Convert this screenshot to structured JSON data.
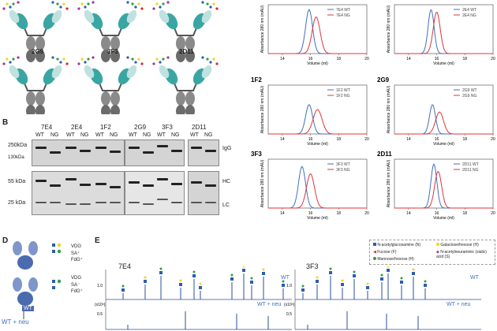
{
  "panels": {
    "B": "B",
    "D": "D",
    "E": "E"
  },
  "antibodies_top": [
    {
      "label": ""
    },
    {
      "label": ""
    },
    {
      "label": ""
    },
    {
      "label": "2G9"
    },
    {
      "label": "3F3"
    },
    {
      "label": "2D11"
    }
  ],
  "gel": {
    "lanes": [
      {
        "clone": "7E4",
        "wt": "WT",
        "ng": "NG"
      },
      {
        "clone": "2E4",
        "wt": "WT",
        "ng": "NG"
      },
      {
        "clone": "1F2",
        "wt": "WT",
        "ng": "NG"
      },
      {
        "clone": "2G9",
        "wt": "WT",
        "ng": "NG"
      },
      {
        "clone": "3F3",
        "wt": "WT",
        "ng": "NG"
      },
      {
        "clone": "2D11",
        "wt": "WT",
        "ng": "NG"
      }
    ],
    "markers_top": [
      "250kDa",
      "130kDa"
    ],
    "markers_bottom": [
      "55 kDa",
      "25 kDa"
    ],
    "row_labels": [
      "IgG",
      "HC",
      "LC"
    ]
  },
  "chromatograms": {
    "ylabel": "Absorbance 280 nm (mAU)",
    "xlabel": "Volume (ml)",
    "xticks": [
      "14",
      "16",
      "18",
      "20"
    ],
    "wt_color": "#3f6fc0",
    "ng_color": "#e0333a",
    "charts": [
      {
        "title": "",
        "legend_wt": "7E4 WT",
        "legend_ng": "7E4 NG"
      },
      {
        "title": "",
        "legend_wt": "2E4 WT",
        "legend_ng": "2E4 NG"
      },
      {
        "title": "1F2",
        "legend_wt": "1F2 WT",
        "legend_ng": "1F2 NG"
      },
      {
        "title": "2G9",
        "legend_wt": "2G9 WT",
        "legend_ng": "2G9 NG"
      },
      {
        "title": "3F3",
        "legend_wt": "3F3 WT",
        "legend_ng": "3F3 NG"
      },
      {
        "title": "2D11",
        "legend_wt": "2D11 WT",
        "legend_ng": "2D11 NG"
      }
    ]
  },
  "chart_data": [
    {
      "type": "line",
      "title": "",
      "xlabel": "Volume (ml)",
      "ylabel": "Absorbance 280 nm (mAU)",
      "xlim": [
        13,
        20
      ],
      "series": [
        {
          "name": "7E4 WT",
          "peak": 15.9,
          "width": 0.35,
          "height": 0.9
        },
        {
          "name": "7E4 NG",
          "peak": 16.4,
          "width": 0.4,
          "height": 0.75
        }
      ]
    },
    {
      "type": "line",
      "title": "",
      "xlabel": "Volume (ml)",
      "ylabel": "Absorbance 280 nm (mAU)",
      "xlim": [
        13,
        20
      ],
      "series": [
        {
          "name": "2E4 WT",
          "peak": 15.6,
          "width": 0.3,
          "height": 0.9
        },
        {
          "name": "2E4 NG",
          "peak": 16.0,
          "width": 0.35,
          "height": 0.85
        }
      ]
    },
    {
      "type": "line",
      "title": "1F2",
      "xlabel": "Volume (ml)",
      "ylabel": "Absorbance 280 nm (mAU)",
      "xlim": [
        13,
        20
      ],
      "series": [
        {
          "name": "1F2 WT",
          "peak": 15.9,
          "width": 0.35,
          "height": 0.6
        },
        {
          "name": "1F2 NG",
          "peak": 16.5,
          "width": 0.45,
          "height": 0.5
        }
      ]
    },
    {
      "type": "line",
      "title": "2G9",
      "xlabel": "Volume (ml)",
      "ylabel": "Absorbance 280 nm (mAU)",
      "xlim": [
        13,
        20
      ],
      "series": [
        {
          "name": "2G9 WT",
          "peak": 15.7,
          "width": 0.3,
          "height": 0.6
        },
        {
          "name": "2G9 NG",
          "peak": 16.2,
          "width": 0.4,
          "height": 0.45
        }
      ]
    },
    {
      "type": "line",
      "title": "3F3",
      "xlabel": "Volume (ml)",
      "ylabel": "Absorbance 280 nm (mAU)",
      "xlim": [
        13,
        20
      ],
      "series": [
        {
          "name": "3F3 WT",
          "peak": 15.4,
          "width": 0.35,
          "height": 0.85
        },
        {
          "name": "3F3 NG",
          "peak": 16.0,
          "width": 0.4,
          "height": 0.7
        }
      ]
    },
    {
      "type": "line",
      "title": "2D11",
      "xlabel": "Volume (ml)",
      "ylabel": "Absorbance 280 nm (mAU)",
      "xlim": [
        13,
        20
      ],
      "series": [
        {
          "name": "2D11 WT",
          "peak": 15.8,
          "width": 0.3,
          "height": 0.9
        },
        {
          "name": "2D11 NG",
          "peak": 16.1,
          "width": 0.35,
          "height": 0.75
        }
      ]
    }
  ],
  "panel_d": {
    "wt_label": "WT",
    "wt_neu_label": "WT + neu",
    "glycan_lines": [
      "VDG",
      "SA⁺",
      "FdG⁺",
      "VDG",
      "SA⁻",
      "FdG⁺"
    ]
  },
  "panel_e": {
    "left_title": "7E4",
    "right_title": "3F3",
    "wt_label": "WT",
    "wt_neu_label": "WT + neu",
    "yticks": [
      "1.0",
      "0.5"
    ],
    "yunit": "(x10⁵)",
    "legend": [
      {
        "label": "N-acetylglucosamine (N)",
        "color": "#2a5db0"
      },
      {
        "label": "Galactose/hexose (H)",
        "color": "#f1d31f"
      },
      {
        "label": "Fucose (F)",
        "color": "#d82a2a"
      },
      {
        "label": "N-acetylneuraminic (sialic) acid (S)",
        "color": "#a3339b"
      },
      {
        "label": "Mannose/hexose (H)",
        "color": "#2f9e44"
      }
    ]
  }
}
